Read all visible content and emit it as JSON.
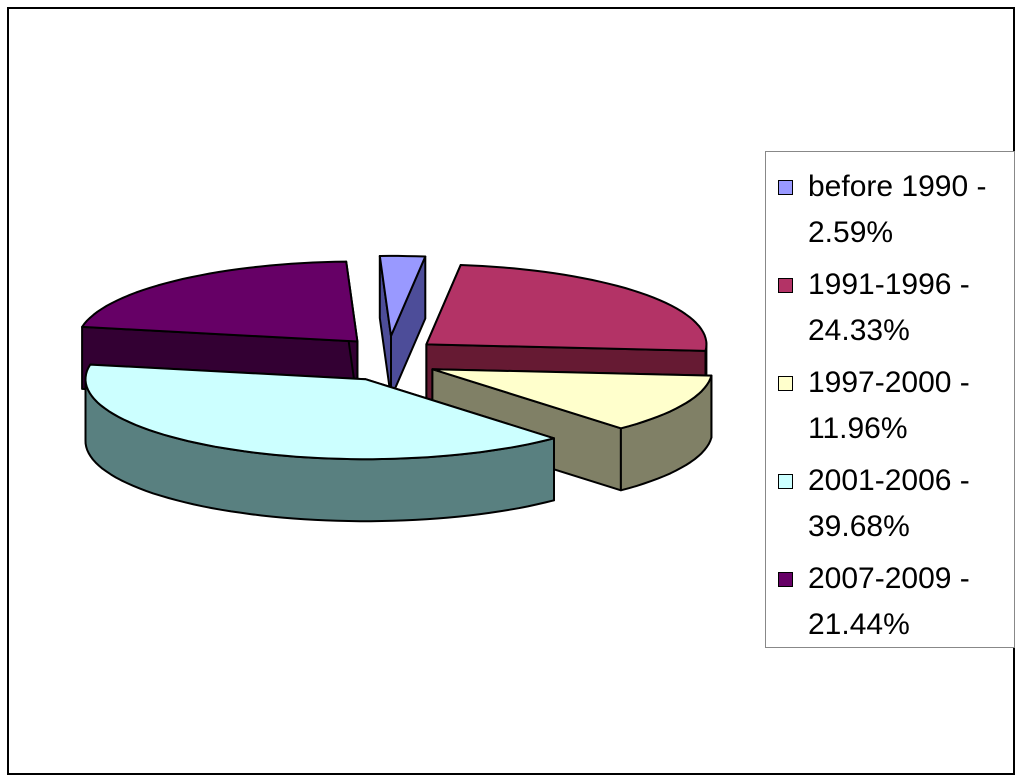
{
  "chart_data": {
    "type": "pie",
    "style": "3d-exploded",
    "categories": [
      "before 1990",
      "1991-1996",
      "1997-2000",
      "2001-2006",
      "2007-2009"
    ],
    "values": [
      2.59,
      24.33,
      11.96,
      39.68,
      21.44
    ],
    "unit": "%",
    "colors": [
      "#9999ff",
      "#b33366",
      "#ffffcc",
      "#ccffff",
      "#660066"
    ],
    "side_colors": [
      "#4d4d99",
      "#661a33",
      "#808066",
      "#598080",
      "#330033"
    ],
    "legend_placement": "right",
    "legend": [
      {
        "line1": "before 1990 -",
        "line2": "2.59%"
      },
      {
        "line1": "1991-1996 -",
        "line2": "24.33%"
      },
      {
        "line1": "1997-2000 -",
        "line2": "11.96%"
      },
      {
        "line1": "2001-2006 -",
        "line2": "39.68%"
      },
      {
        "line1": "2007-2009 -",
        "line2": "21.44%"
      }
    ]
  }
}
